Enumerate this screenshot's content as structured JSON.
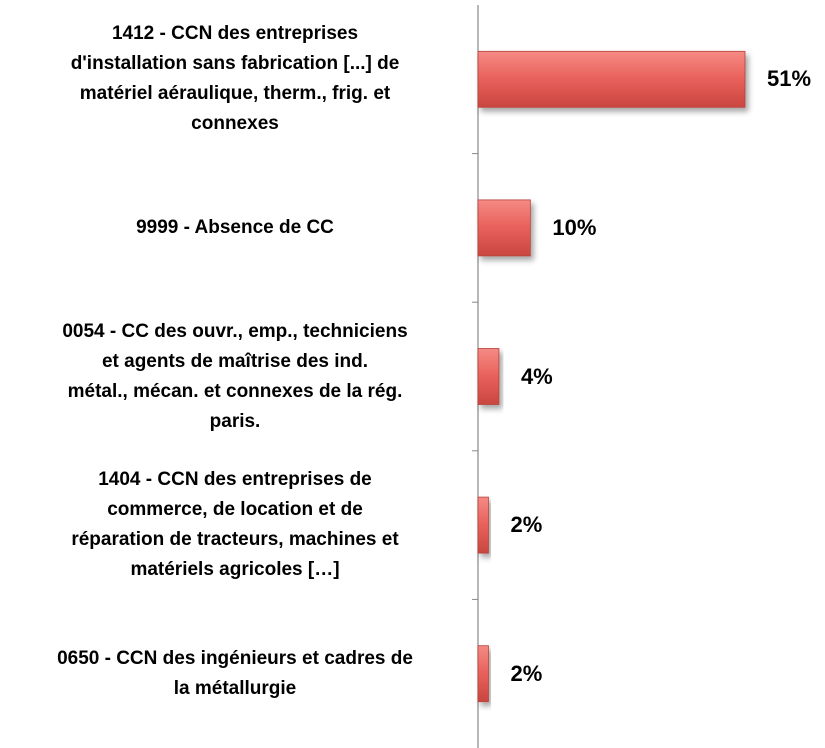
{
  "chart_data": {
    "type": "bar",
    "orientation": "horizontal",
    "categories": [
      "1412 - CCN des entreprises\nd'installation sans fabrication [...] de\nmatériel aéraulique, therm., frig. et\nconnexes",
      "9999 - Absence de CC",
      "0054 - CC des ouvr., emp., techniciens\net agents de maîtrise des ind.\nmétal., mécan. et connexes de la rég.\nparis.",
      "1404 - CCN des entreprises de\ncommerce, de location et de\nréparation de tracteurs, machines et\nmatériels agricoles […]",
      "0650 - CCN des ingénieurs et cadres de\nla métallurgie"
    ],
    "values": [
      51,
      10,
      4,
      2,
      2
    ],
    "value_labels": [
      "51%",
      "10%",
      "4%",
      "2%",
      "2%"
    ],
    "color": "#e8605a"
  }
}
